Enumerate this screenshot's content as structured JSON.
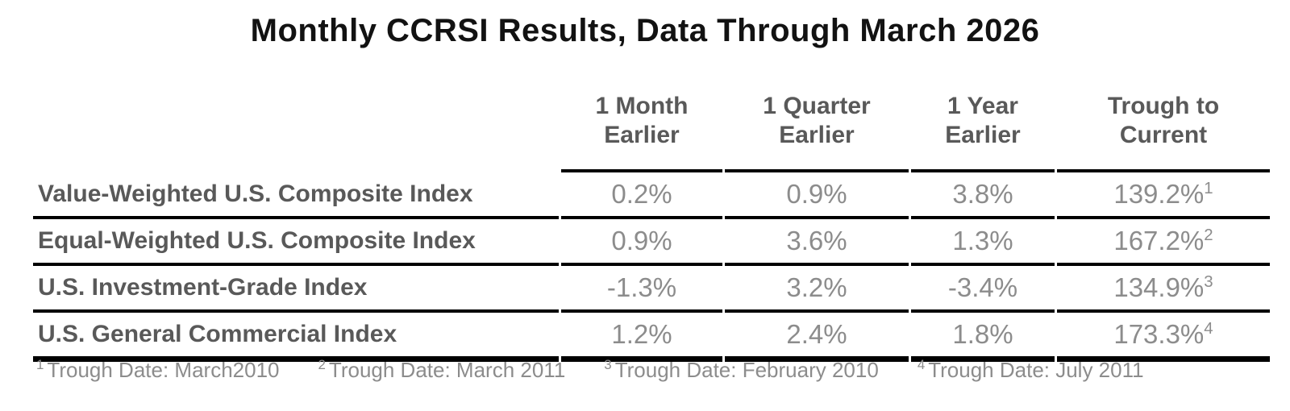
{
  "chart_data": {
    "type": "table",
    "title": "Monthly CCRSI Results, Data Through March 2026",
    "columns": [
      "1 Month Earlier",
      "1 Quarter Earlier",
      "1 Year Earlier",
      "Trough to Current"
    ],
    "rows": [
      {
        "index": "Value-Weighted U.S. Composite Index",
        "one_month": "0.2%",
        "one_quarter": "0.9%",
        "one_year": "3.8%",
        "trough_to_current": "139.2%",
        "footnote_ref": "1"
      },
      {
        "index": "Equal-Weighted U.S. Composite Index",
        "one_month": "0.9%",
        "one_quarter": "3.6%",
        "one_year": "1.3%",
        "trough_to_current": "167.2%",
        "footnote_ref": "2"
      },
      {
        "index": "U.S. Investment-Grade Index",
        "one_month": "-1.3%",
        "one_quarter": "3.2%",
        "one_year": "-3.4%",
        "trough_to_current": "134.9%",
        "footnote_ref": "3"
      },
      {
        "index": "U.S. General Commercial Index",
        "one_month": "1.2%",
        "one_quarter": "2.4%",
        "one_year": "1.8%",
        "trough_to_current": "173.3%",
        "footnote_ref": "4"
      }
    ],
    "footnotes": [
      {
        "sup": "1",
        "text": "Trough Date: March2010"
      },
      {
        "sup": "2",
        "text": "Trough Date: March 2011"
      },
      {
        "sup": "3",
        "text": "Trough Date: February 2010"
      },
      {
        "sup": "4",
        "text": "Trough Date: July 2011"
      }
    ],
    "layout_hints": {
      "header_rule_spans_data_columns_only": true,
      "row_rules_have_column_gaps": true,
      "bottom_rule_thicker": true
    }
  },
  "header_display": {
    "col_labels": [
      "1 Month\nEarlier",
      "1 Quarter\nEarlier",
      "1 Year\nEarlier",
      "Trough to\nCurrent"
    ]
  },
  "colors": {
    "title_text": "#121212",
    "header_text": "#595959",
    "row_label_text": "#595959",
    "value_text": "#8c8c8c",
    "footnote_text": "#8c8c8c",
    "rule_line": "#000000",
    "background": "#ffffff"
  }
}
